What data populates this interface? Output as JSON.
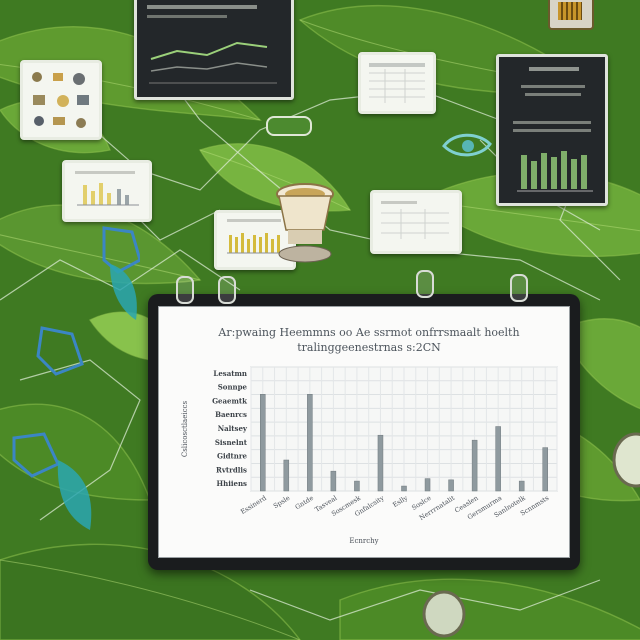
{
  "main_chart": {
    "title_line1": "Ar:pwaing Heemmns oo Ae ssrmot onfrrsmaalt hoelth",
    "title_line2": "tralinggeenestrnas s:2CN",
    "x_label": "Ecnrchy",
    "y_label": "Cslicosctlaeiccs",
    "y_ticks": [
      "Lesatmn",
      "Sonnpe",
      "Geaemtk",
      "Baenrcs",
      "Naltsey",
      "Sisnelnt",
      "Gidtnre",
      "Rvtrdlis",
      "Hhiiens"
    ],
    "chart_data": {
      "type": "bar",
      "categories": [
        "Essinerd",
        "Spsle",
        "Gntde",
        "Tasveal",
        "Soscmesk",
        "Gnfalcsity",
        "Eslly",
        "Soslce",
        "Nerrrnatalit",
        "Ceaslen",
        "Gersmurma",
        "Sanlnotelk",
        "Scnnmsts"
      ],
      "values": [
        78,
        25,
        78,
        16,
        8,
        45,
        4,
        10,
        9,
        41,
        52,
        8,
        35
      ],
      "ylim": [
        0,
        100
      ]
    }
  },
  "accent_colors": {
    "leaf": "#3f7a22",
    "glass_blue": "#3b86c4",
    "glass_teal": "#2aa6b0",
    "board": "#1a1c1e"
  }
}
